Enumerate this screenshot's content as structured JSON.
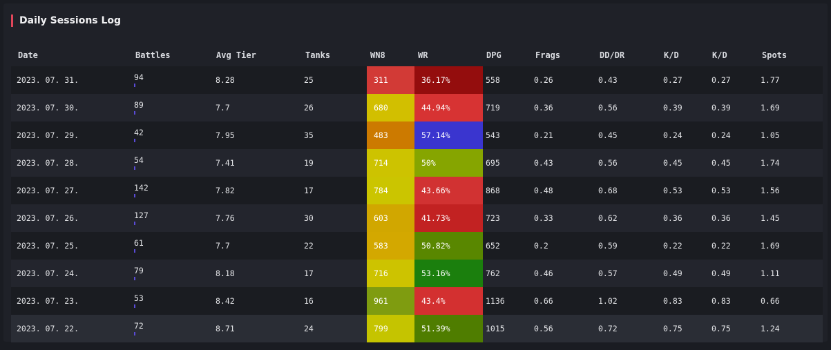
{
  "panel": {
    "title": "Daily Sessions Log",
    "accent_color": "#e0465a"
  },
  "columns": [
    "Date",
    "Battles",
    "Avg Tier",
    "Tanks",
    "WN8",
    "WR",
    "DPG",
    "Frags",
    "DD/DR",
    "K/D",
    "K/D",
    "Spots"
  ],
  "rows": [
    {
      "date": "2023. 07. 31.",
      "battles": "94",
      "avg_tier": "8.28",
      "tanks": "25",
      "wn8": "311",
      "wn8_color": "#d23a36",
      "wr": "36.17%",
      "wr_color": "#940d0d",
      "dpg": "558",
      "frags": "0.26",
      "dddr": "0.43",
      "kd1": "0.27",
      "kd2": "0.27",
      "spots": "1.77"
    },
    {
      "date": "2023. 07. 30.",
      "battles": "89",
      "avg_tier": "7.7",
      "tanks": "26",
      "wn8": "680",
      "wn8_color": "#d2bf00",
      "wr": "44.94%",
      "wr_color": "#d73333",
      "dpg": "719",
      "frags": "0.36",
      "dddr": "0.56",
      "kd1": "0.39",
      "kd2": "0.39",
      "spots": "1.69"
    },
    {
      "date": "2023. 07. 29.",
      "battles": "42",
      "avg_tier": "7.95",
      "tanks": "35",
      "wn8": "483",
      "wn8_color": "#cc7a00",
      "wr": "57.14%",
      "wr_color": "#3a35cf",
      "dpg": "543",
      "frags": "0.21",
      "dddr": "0.45",
      "kd1": "0.24",
      "kd2": "0.24",
      "spots": "1.05"
    },
    {
      "date": "2023. 07. 28.",
      "battles": "54",
      "avg_tier": "7.41",
      "tanks": "19",
      "wn8": "714",
      "wn8_color": "#cdc300",
      "wr": "50%",
      "wr_color": "#86a500",
      "dpg": "695",
      "frags": "0.43",
      "dddr": "0.56",
      "kd1": "0.45",
      "kd2": "0.45",
      "spots": "1.74"
    },
    {
      "date": "2023. 07. 27.",
      "battles": "142",
      "avg_tier": "7.82",
      "tanks": "17",
      "wn8": "784",
      "wn8_color": "#cbc500",
      "wr": "43.66%",
      "wr_color": "#d13232",
      "dpg": "868",
      "frags": "0.48",
      "dddr": "0.68",
      "kd1": "0.53",
      "kd2": "0.53",
      "spots": "1.56"
    },
    {
      "date": "2023. 07. 26.",
      "battles": "127",
      "avg_tier": "7.76",
      "tanks": "30",
      "wn8": "603",
      "wn8_color": "#d1a700",
      "wr": "41.73%",
      "wr_color": "#c22222",
      "dpg": "723",
      "frags": "0.33",
      "dddr": "0.62",
      "kd1": "0.36",
      "kd2": "0.36",
      "spots": "1.45"
    },
    {
      "date": "2023. 07. 25.",
      "battles": "61",
      "avg_tier": "7.7",
      "tanks": "22",
      "wn8": "583",
      "wn8_color": "#d3a800",
      "wr": "50.82%",
      "wr_color": "#598700",
      "dpg": "652",
      "frags": "0.2",
      "dddr": "0.59",
      "kd1": "0.22",
      "kd2": "0.22",
      "spots": "1.69"
    },
    {
      "date": "2023. 07. 24.",
      "battles": "79",
      "avg_tier": "8.18",
      "tanks": "17",
      "wn8": "716",
      "wn8_color": "#cdc300",
      "wr": "53.16%",
      "wr_color": "#1b7f0d",
      "dpg": "762",
      "frags": "0.46",
      "dddr": "0.57",
      "kd1": "0.49",
      "kd2": "0.49",
      "spots": "1.11"
    },
    {
      "date": "2023. 07. 23.",
      "battles": "53",
      "avg_tier": "8.42",
      "tanks": "16",
      "wn8": "961",
      "wn8_color": "#7f9c10",
      "wr": "43.4%",
      "wr_color": "#d33030",
      "dpg": "1136",
      "frags": "0.66",
      "dddr": "1.02",
      "kd1": "0.83",
      "kd2": "0.83",
      "spots": "0.66"
    },
    {
      "date": "2023. 07. 22.",
      "battles": "72",
      "avg_tier": "8.71",
      "tanks": "24",
      "wn8": "799",
      "wn8_color": "#c5c400",
      "wr": "51.39%",
      "wr_color": "#4f7d00",
      "dpg": "1015",
      "frags": "0.56",
      "dddr": "0.72",
      "kd1": "0.75",
      "kd2": "0.75",
      "spots": "1.24"
    }
  ]
}
